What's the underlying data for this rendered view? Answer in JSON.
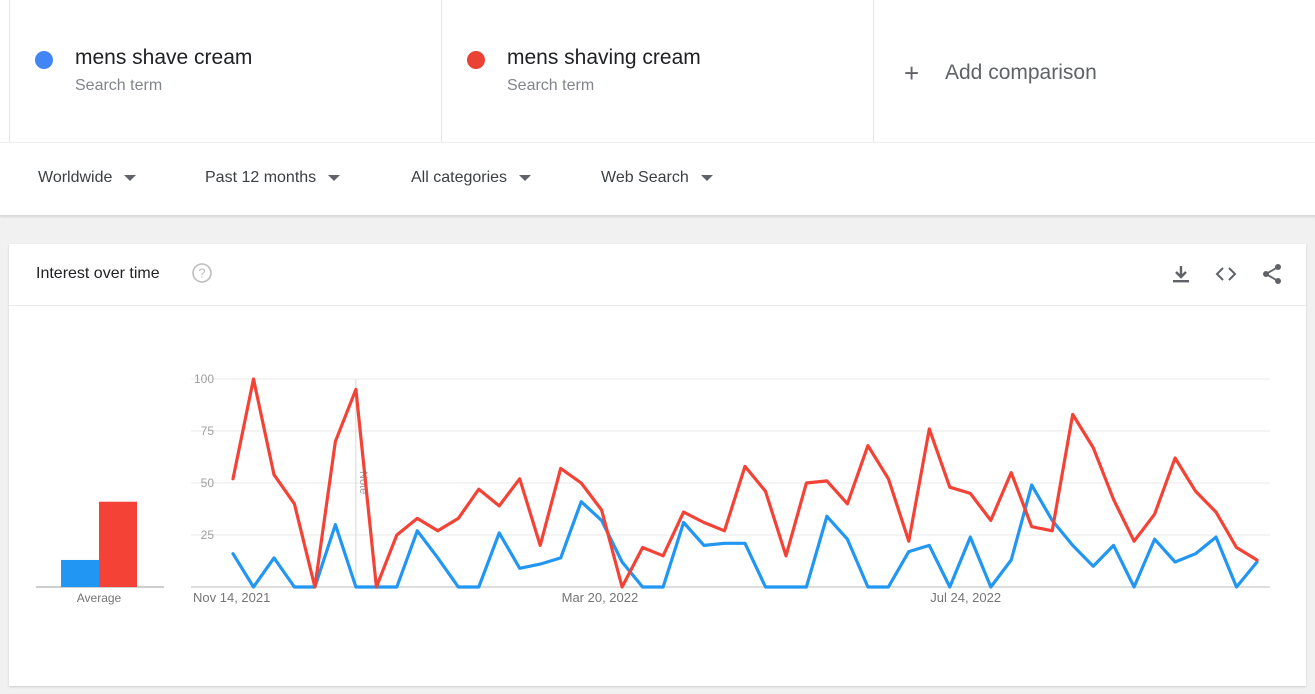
{
  "terms": [
    {
      "name": "mens shave cream",
      "sub": "Search term",
      "color": "#4285f4"
    },
    {
      "name": "mens shaving cream",
      "sub": "Search term",
      "color": "#ea4335"
    }
  ],
  "add_comparison": {
    "label": "Add comparison",
    "icon": "plus-icon"
  },
  "filters": {
    "region": "Worldwide",
    "time": "Past 12 months",
    "category": "All categories",
    "search_type": "Web Search"
  },
  "card": {
    "title": "Interest over time",
    "help_icon": "question-circle-icon",
    "actions": [
      "download-icon",
      "embed-code-icon",
      "share-icon"
    ]
  },
  "chart_data": {
    "type": "line",
    "y_ticks": [
      "100",
      "75",
      "50",
      "25"
    ],
    "ylim": [
      0,
      100
    ],
    "x_labels": [
      {
        "label": "Nov 14, 2021",
        "index": 0
      },
      {
        "label": "Mar 20, 2022",
        "index": 18
      },
      {
        "label": "Jul 24, 2022",
        "index": 36
      }
    ],
    "note_label": "Note",
    "note_index": 6,
    "series": [
      {
        "color": "#2196f3",
        "values": [
          16,
          0,
          14,
          0,
          0,
          30,
          0,
          0,
          0,
          27,
          14,
          0,
          0,
          26,
          9,
          11,
          14,
          41,
          32,
          12,
          0,
          0,
          31,
          20,
          21,
          21,
          0,
          0,
          0,
          34,
          23,
          0,
          0,
          17,
          20,
          0,
          24,
          0,
          13,
          49,
          32,
          20,
          10,
          20,
          0,
          23,
          12,
          16,
          24,
          0,
          12
        ]
      },
      {
        "color": "#f44336",
        "values": [
          52,
          100,
          54,
          40,
          0,
          70,
          95,
          0,
          25,
          33,
          27,
          33,
          47,
          39,
          52,
          20,
          57,
          50,
          37,
          0,
          19,
          15,
          36,
          31,
          27,
          58,
          46,
          15,
          50,
          51,
          40,
          68,
          52,
          22,
          76,
          48,
          45,
          32,
          55,
          29,
          27,
          83,
          67,
          42,
          22,
          35,
          62,
          46,
          36,
          19,
          13
        ]
      }
    ],
    "average": {
      "label": "Average",
      "values": [
        13,
        41
      ]
    },
    "grid": true
  }
}
